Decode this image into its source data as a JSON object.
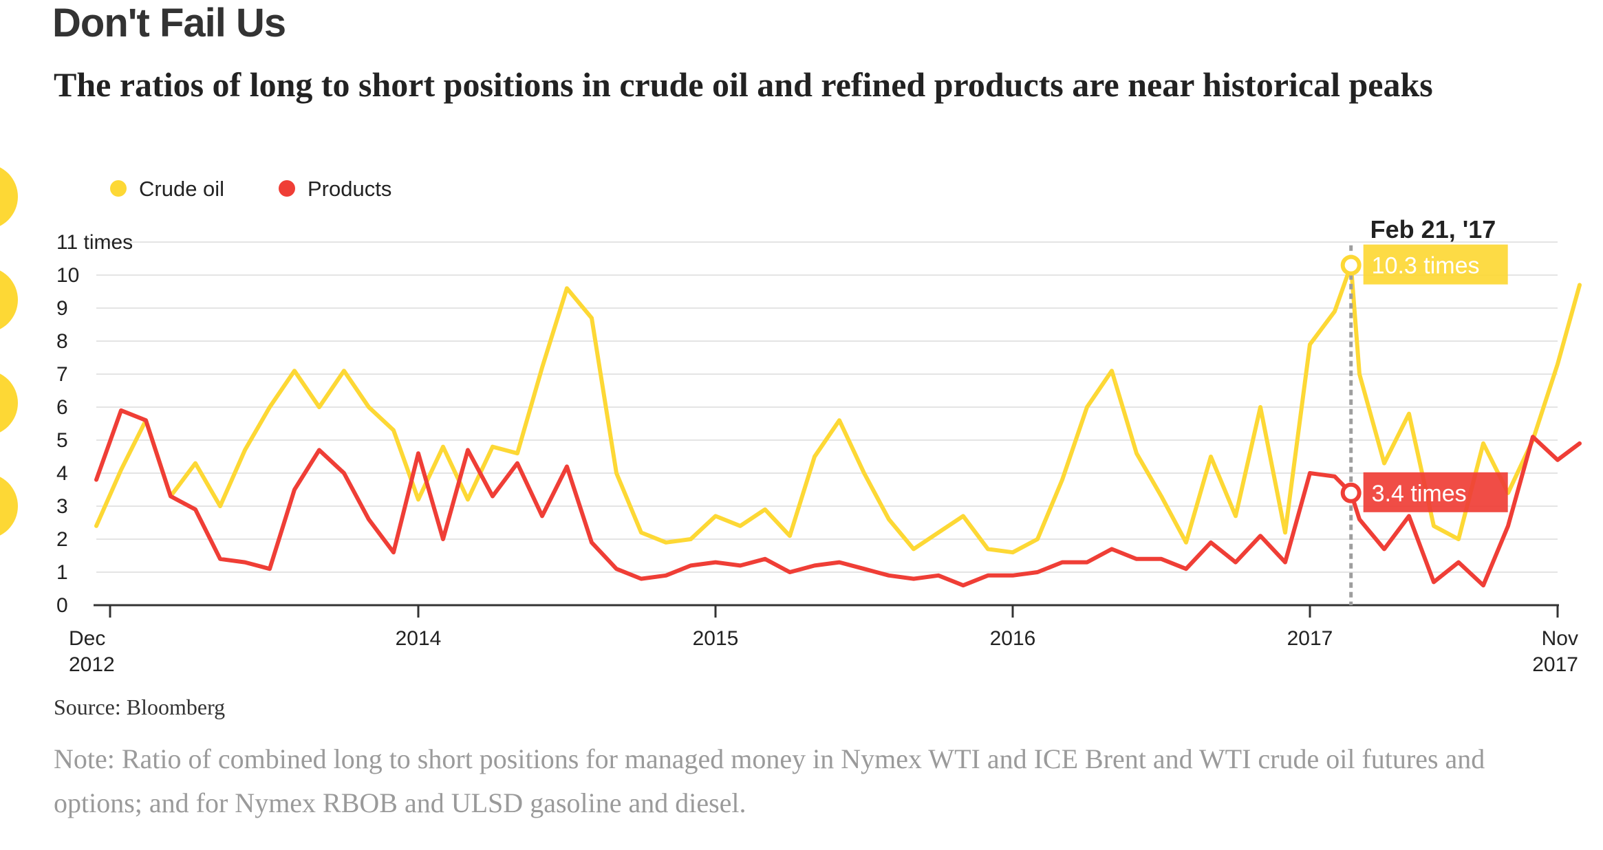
{
  "title": "Don't Fail Us",
  "subtitle": "The ratios of long to short positions in crude oil and refined products are near historical peaks",
  "source": "Source: Bloomberg",
  "note": "Note: Ratio of combined long to short positions for managed money in Nymex WTI and ICE Brent and WTI crude oil futures and options; and for Nymex RBOB and ULSD gasoline and diesel.",
  "colors": {
    "crude": "#fdd835",
    "products": "#ef3e36",
    "grid": "#e4e4e4",
    "axis": "#333333",
    "marker_line": "#9e9e9e"
  },
  "chart_data": {
    "type": "line",
    "xlabel": "",
    "ylabel": "",
    "ylim": [
      0,
      11
    ],
    "xlim": [
      "2012-12",
      "2017-11"
    ],
    "grid": true,
    "legend": "top-left",
    "yticks": [
      {
        "value": 11,
        "label": "11 times"
      },
      {
        "value": 10,
        "label": "10"
      },
      {
        "value": 9,
        "label": "9"
      },
      {
        "value": 8,
        "label": "8"
      },
      {
        "value": 7,
        "label": "7"
      },
      {
        "value": 6,
        "label": "6"
      },
      {
        "value": 5,
        "label": "5"
      },
      {
        "value": 4,
        "label": "4"
      },
      {
        "value": 3,
        "label": "3"
      },
      {
        "value": 2,
        "label": "2"
      },
      {
        "value": 1,
        "label": "1"
      },
      {
        "value": 0,
        "label": "0"
      }
    ],
    "xticks": [
      {
        "date": "2012-12",
        "line1": "Dec",
        "line2": "2012"
      },
      {
        "date": "2014-01",
        "line1": "2014",
        "line2": ""
      },
      {
        "date": "2015-01",
        "line1": "2015",
        "line2": ""
      },
      {
        "date": "2016-01",
        "line1": "2016",
        "line2": ""
      },
      {
        "date": "2017-01",
        "line1": "2017",
        "line2": ""
      },
      {
        "date": "2017-11",
        "line1": "Nov",
        "line2": "2017"
      }
    ],
    "series": [
      {
        "name": "Crude oil",
        "color": "#fdd835",
        "points": [
          [
            "2012-12",
            2.4
          ],
          [
            "2013-01",
            4.1
          ],
          [
            "2013-02",
            5.6
          ],
          [
            "2013-03",
            3.3
          ],
          [
            "2013-04",
            4.3
          ],
          [
            "2013-05",
            3.0
          ],
          [
            "2013-06",
            4.7
          ],
          [
            "2013-07",
            6.0
          ],
          [
            "2013-08",
            7.1
          ],
          [
            "2013-09",
            6.0
          ],
          [
            "2013-10",
            7.1
          ],
          [
            "2013-11",
            6.0
          ],
          [
            "2013-12",
            5.3
          ],
          [
            "2014-01",
            3.2
          ],
          [
            "2014-02",
            4.8
          ],
          [
            "2014-03",
            3.2
          ],
          [
            "2014-04",
            4.8
          ],
          [
            "2014-05",
            4.6
          ],
          [
            "2014-06",
            7.2
          ],
          [
            "2014-07",
            9.6
          ],
          [
            "2014-08",
            8.7
          ],
          [
            "2014-09",
            4.0
          ],
          [
            "2014-10",
            2.2
          ],
          [
            "2014-11",
            1.9
          ],
          [
            "2014-12",
            2.0
          ],
          [
            "2015-01",
            2.7
          ],
          [
            "2015-02",
            2.4
          ],
          [
            "2015-03",
            2.9
          ],
          [
            "2015-04",
            2.1
          ],
          [
            "2015-05",
            4.5
          ],
          [
            "2015-06",
            5.6
          ],
          [
            "2015-07",
            4.0
          ],
          [
            "2015-08",
            2.6
          ],
          [
            "2015-09",
            1.7
          ],
          [
            "2015-10",
            2.2
          ],
          [
            "2015-11",
            2.7
          ],
          [
            "2015-12",
            1.7
          ],
          [
            "2016-01",
            1.6
          ],
          [
            "2016-02",
            2.0
          ],
          [
            "2016-03",
            3.8
          ],
          [
            "2016-04",
            6.0
          ],
          [
            "2016-05",
            7.1
          ],
          [
            "2016-06",
            4.6
          ],
          [
            "2016-07",
            3.3
          ],
          [
            "2016-08",
            1.9
          ],
          [
            "2016-09",
            4.5
          ],
          [
            "2016-10",
            2.7
          ],
          [
            "2016-11",
            6.0
          ],
          [
            "2016-12",
            2.2
          ],
          [
            "2017-01",
            7.9
          ],
          [
            "2017-02",
            8.9
          ],
          [
            "2017-02-21",
            10.3
          ],
          [
            "2017-03",
            7.0
          ],
          [
            "2017-04",
            4.3
          ],
          [
            "2017-05",
            5.8
          ],
          [
            "2017-06",
            2.4
          ],
          [
            "2017-07",
            2.0
          ],
          [
            "2017-08",
            4.9
          ],
          [
            "2017-09",
            3.4
          ],
          [
            "2017-10",
            5.0
          ],
          [
            "2017-11",
            7.3
          ],
          [
            "2017-11-28",
            9.7
          ]
        ]
      },
      {
        "name": "Products",
        "color": "#ef3e36",
        "points": [
          [
            "2012-12",
            3.8
          ],
          [
            "2013-01",
            5.9
          ],
          [
            "2013-02",
            5.6
          ],
          [
            "2013-03",
            3.3
          ],
          [
            "2013-04",
            2.9
          ],
          [
            "2013-05",
            1.4
          ],
          [
            "2013-06",
            1.3
          ],
          [
            "2013-07",
            1.1
          ],
          [
            "2013-08",
            3.5
          ],
          [
            "2013-09",
            4.7
          ],
          [
            "2013-10",
            4.0
          ],
          [
            "2013-11",
            2.6
          ],
          [
            "2013-12",
            1.6
          ],
          [
            "2014-01",
            4.6
          ],
          [
            "2014-02",
            2.0
          ],
          [
            "2014-03",
            4.7
          ],
          [
            "2014-04",
            3.3
          ],
          [
            "2014-05",
            4.3
          ],
          [
            "2014-06",
            2.7
          ],
          [
            "2014-07",
            4.2
          ],
          [
            "2014-08",
            1.9
          ],
          [
            "2014-09",
            1.1
          ],
          [
            "2014-10",
            0.8
          ],
          [
            "2014-11",
            0.9
          ],
          [
            "2014-12",
            1.2
          ],
          [
            "2015-01",
            1.3
          ],
          [
            "2015-02",
            1.2
          ],
          [
            "2015-03",
            1.4
          ],
          [
            "2015-04",
            1.0
          ],
          [
            "2015-05",
            1.2
          ],
          [
            "2015-06",
            1.3
          ],
          [
            "2015-07",
            1.1
          ],
          [
            "2015-08",
            0.9
          ],
          [
            "2015-09",
            0.8
          ],
          [
            "2015-10",
            0.9
          ],
          [
            "2015-11",
            0.6
          ],
          [
            "2015-12",
            0.9
          ],
          [
            "2016-01",
            0.9
          ],
          [
            "2016-02",
            1.0
          ],
          [
            "2016-03",
            1.3
          ],
          [
            "2016-04",
            1.3
          ],
          [
            "2016-05",
            1.7
          ],
          [
            "2016-06",
            1.4
          ],
          [
            "2016-07",
            1.4
          ],
          [
            "2016-08",
            1.1
          ],
          [
            "2016-09",
            1.9
          ],
          [
            "2016-10",
            1.3
          ],
          [
            "2016-11",
            2.1
          ],
          [
            "2016-12",
            1.3
          ],
          [
            "2017-01",
            4.0
          ],
          [
            "2017-02",
            3.9
          ],
          [
            "2017-02-21",
            3.4
          ],
          [
            "2017-03",
            2.6
          ],
          [
            "2017-04",
            1.7
          ],
          [
            "2017-05",
            2.7
          ],
          [
            "2017-06",
            0.7
          ],
          [
            "2017-07",
            1.3
          ],
          [
            "2017-08",
            0.6
          ],
          [
            "2017-09",
            2.4
          ],
          [
            "2017-10",
            5.1
          ],
          [
            "2017-11",
            4.4
          ],
          [
            "2017-11-28",
            4.9
          ]
        ]
      }
    ],
    "highlight": {
      "date": "2017-02-21",
      "label": "Feb 21, '17",
      "crude_label": "10.3 times",
      "crude_value": 10.3,
      "products_label": "3.4 times",
      "products_value": 3.4
    }
  }
}
